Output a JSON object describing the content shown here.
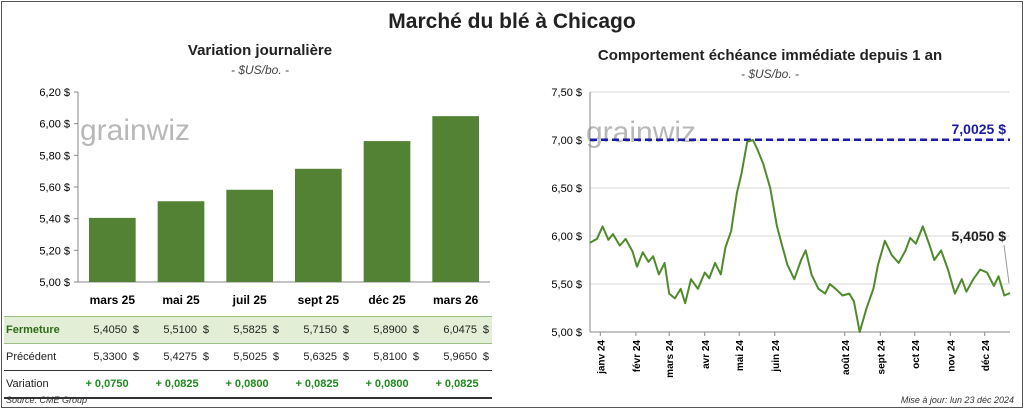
{
  "title": "Marché du blé à Chicago",
  "left_chart": {
    "title": "Variation journalière",
    "unit": "- $US/bo. -",
    "watermark": "grainwiz"
  },
  "right_chart": {
    "title": "Comportement échéance immédiate depuis 1 an",
    "unit": "- $US/bo. -",
    "watermark": "grainwiz",
    "high_label": "7,0025 $",
    "last_label": "5,4050 $"
  },
  "table": {
    "rows": [
      {
        "label": "Fermeture",
        "values": [
          "5,4050",
          "5,5100",
          "5,5825",
          "5,7150",
          "5,8900",
          "6,0475"
        ],
        "currency": "$"
      },
      {
        "label": "Précédent",
        "values": [
          "5,3300",
          "5,4275",
          "5,5025",
          "5,6325",
          "5,8100",
          "5,9650"
        ],
        "currency": "$"
      },
      {
        "label": "Variation",
        "values": [
          "+ 0,0750",
          "+ 0,0825",
          "+ 0,0800",
          "+ 0,0825",
          "+ 0,0800",
          "+ 0,0825"
        ],
        "currency": ""
      }
    ]
  },
  "footer": {
    "source": "Source: CME Group",
    "updated": "Mise à jour: lun 23 déc 2024"
  },
  "colors": {
    "bar": "#548235",
    "line": "#4f8a2b",
    "ref_line": "#1a1aa8"
  },
  "chart_data": [
    {
      "type": "bar",
      "title": "Variation journalière",
      "ylabel": "- $US/bo. -",
      "categories": [
        "mars 25",
        "mai 25",
        "juil 25",
        "sept 25",
        "déc 25",
        "mars 26"
      ],
      "values": [
        5.405,
        5.51,
        5.5825,
        5.715,
        5.89,
        6.0475
      ],
      "ylim": [
        5.0,
        6.2
      ],
      "yticks": [
        5.0,
        5.2,
        5.4,
        5.6,
        5.8,
        6.0,
        6.2
      ],
      "ytick_labels": [
        "5,00 $",
        "5,20 $",
        "5,40 $",
        "5,60 $",
        "5,80 $",
        "6,00 $",
        "6,20 $"
      ],
      "grid": false
    },
    {
      "type": "line",
      "title": "Comportement échéance immédiate depuis 1 an",
      "ylabel": "- $US/bo. -",
      "ylim": [
        5.0,
        7.5
      ],
      "yticks": [
        5.0,
        5.5,
        6.0,
        6.5,
        7.0,
        7.5
      ],
      "ytick_labels": [
        "5,00 $",
        "5,50 $",
        "6,00 $",
        "6,50 $",
        "7,00 $",
        "7,50 $"
      ],
      "xtick_labels": [
        "janv 24",
        "févr 24",
        "mars 24",
        "avr 24",
        "mai 24",
        "juin 24",
        "août 24",
        "sept 24",
        "oct 24",
        "nov 24",
        "déc 24"
      ],
      "xtick_dates": [
        "2024-01-01",
        "2024-02-01",
        "2024-03-01",
        "2024-04-01",
        "2024-05-01",
        "2024-06-01",
        "2024-08-01",
        "2024-09-01",
        "2024-10-01",
        "2024-11-01",
        "2024-12-01"
      ],
      "x_range": [
        "2023-12-23",
        "2024-12-23"
      ],
      "reference_line": 7.0025,
      "last_value": 5.405,
      "grid": true,
      "series": [
        {
          "x": [
            "2023-12-23",
            "2023-12-29",
            "2024-01-03",
            "2024-01-08",
            "2024-01-12",
            "2024-01-18",
            "2024-01-23",
            "2024-01-29",
            "2024-02-02",
            "2024-02-07",
            "2024-02-12",
            "2024-02-16",
            "2024-02-21",
            "2024-02-26",
            "2024-03-01",
            "2024-03-06",
            "2024-03-11",
            "2024-03-15",
            "2024-03-20",
            "2024-03-26",
            "2024-04-01",
            "2024-04-05",
            "2024-04-10",
            "2024-04-15",
            "2024-04-19",
            "2024-04-24",
            "2024-04-29",
            "2024-05-03",
            "2024-05-08",
            "2024-05-13",
            "2024-05-17",
            "2024-05-22",
            "2024-05-28",
            "2024-06-03",
            "2024-06-07",
            "2024-06-12",
            "2024-06-18",
            "2024-06-24",
            "2024-06-28",
            "2024-07-03",
            "2024-07-09",
            "2024-07-15",
            "2024-07-19",
            "2024-07-24",
            "2024-07-30",
            "2024-08-05",
            "2024-08-09",
            "2024-08-14",
            "2024-08-20",
            "2024-08-26",
            "2024-08-30",
            "2024-09-05",
            "2024-09-11",
            "2024-09-17",
            "2024-09-23",
            "2024-09-27",
            "2024-10-02",
            "2024-10-08",
            "2024-10-14",
            "2024-10-18",
            "2024-10-24",
            "2024-10-30",
            "2024-11-05",
            "2024-11-11",
            "2024-11-15",
            "2024-11-21",
            "2024-11-27",
            "2024-12-03",
            "2024-12-09",
            "2024-12-13",
            "2024-12-18",
            "2024-12-23"
          ],
          "y": [
            5.93,
            5.97,
            6.1,
            5.96,
            6.02,
            5.9,
            5.97,
            5.84,
            5.68,
            5.83,
            5.73,
            5.79,
            5.6,
            5.72,
            5.4,
            5.35,
            5.45,
            5.3,
            5.55,
            5.45,
            5.62,
            5.56,
            5.72,
            5.6,
            5.88,
            6.05,
            6.45,
            6.65,
            6.98,
            7.0,
            6.9,
            6.75,
            6.5,
            6.1,
            5.92,
            5.7,
            5.55,
            5.75,
            5.85,
            5.6,
            5.45,
            5.4,
            5.5,
            5.45,
            5.38,
            5.4,
            5.32,
            5.0,
            5.25,
            5.45,
            5.7,
            5.95,
            5.8,
            5.72,
            5.85,
            5.98,
            5.92,
            6.1,
            5.9,
            5.75,
            5.85,
            5.65,
            5.4,
            5.55,
            5.42,
            5.55,
            5.65,
            5.62,
            5.48,
            5.58,
            5.38,
            5.405
          ]
        }
      ]
    }
  ]
}
